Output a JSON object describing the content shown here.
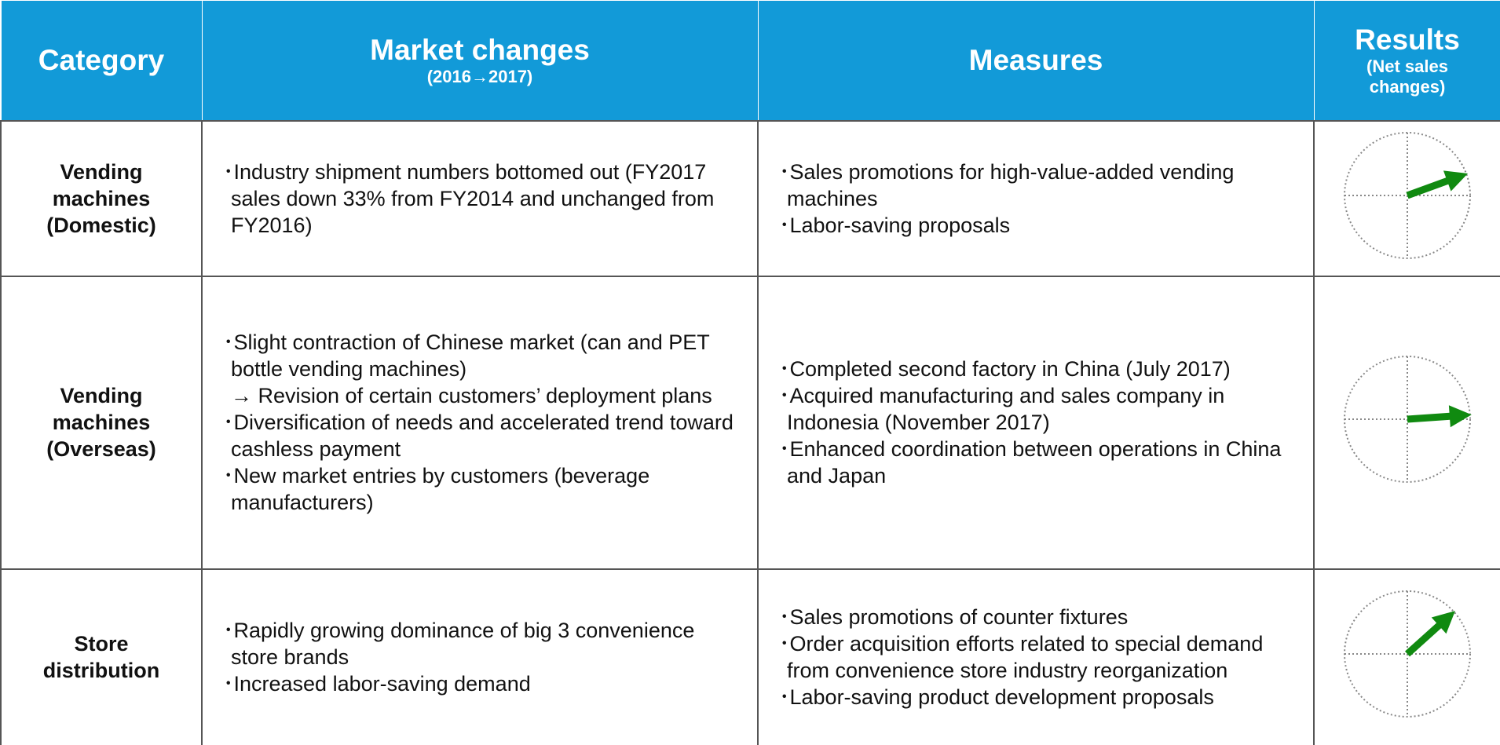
{
  "header": {
    "category": "Category",
    "market_changes": {
      "title": "Market changes",
      "period": "(2016→2017)"
    },
    "measures": "Measures",
    "results": {
      "title": "Results",
      "subtitle": "(Net sales changes)"
    }
  },
  "rows": [
    {
      "category": "Vending machines (Domestic)",
      "market_changes": [
        "･Industry shipment numbers bottomed out (FY2017 sales down 33% from FY2014 and unchanged from FY2016)"
      ],
      "measures": [
        "･Sales promotions for high-value-added vending machines",
        "･Labor-saving proposals"
      ]
    },
    {
      "category": "Vending machines (Overseas)",
      "market_changes": [
        "･Slight contraction of Chinese market (can and PET bottle vending machines)",
        "→ Revision of certain customers’ deployment plans",
        "･Diversification of needs and accelerated trend toward cashless payment",
        "･New market entries by customers (beverage manufacturers)"
      ],
      "measures": [
        "･Completed second factory in China (July 2017)",
        "･Acquired manufacturing and sales company in Indonesia (November 2017)",
        "･Enhanced coordination between operations in China and Japan"
      ]
    },
    {
      "category": "Store distribution",
      "market_changes": [
        "･Rapidly growing dominance of big 3 convenience store brands",
        "･Increased labor-saving demand"
      ],
      "measures": [
        "･Sales promotions of counter fixtures",
        "･Order acquisition efforts related to special demand from convenience store industry reorganization",
        "･Labor-saving product development proposals"
      ]
    }
  ]
}
